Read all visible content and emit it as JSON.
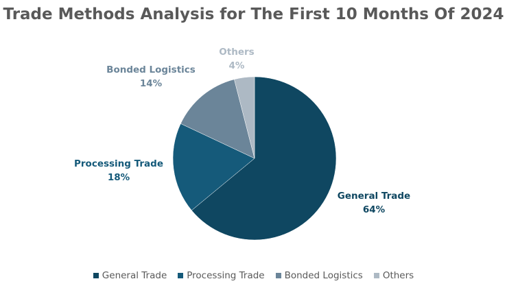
{
  "chart_data": {
    "type": "pie",
    "title": "Trade Methods Analysis for The First 10 Months Of 2024",
    "categories": [
      "General Trade",
      "Processing Trade",
      "Bonded Logistics",
      "Others"
    ],
    "values": [
      64,
      18,
      14,
      4
    ],
    "value_labels": [
      "64%",
      "18%",
      "14%",
      "4%"
    ],
    "colors": [
      "#0f4761",
      "#155a7a",
      "#6b8599",
      "#adb9c4"
    ],
    "start_angle": "12 o'clock",
    "direction": "clockwise",
    "legend_position": "bottom"
  }
}
